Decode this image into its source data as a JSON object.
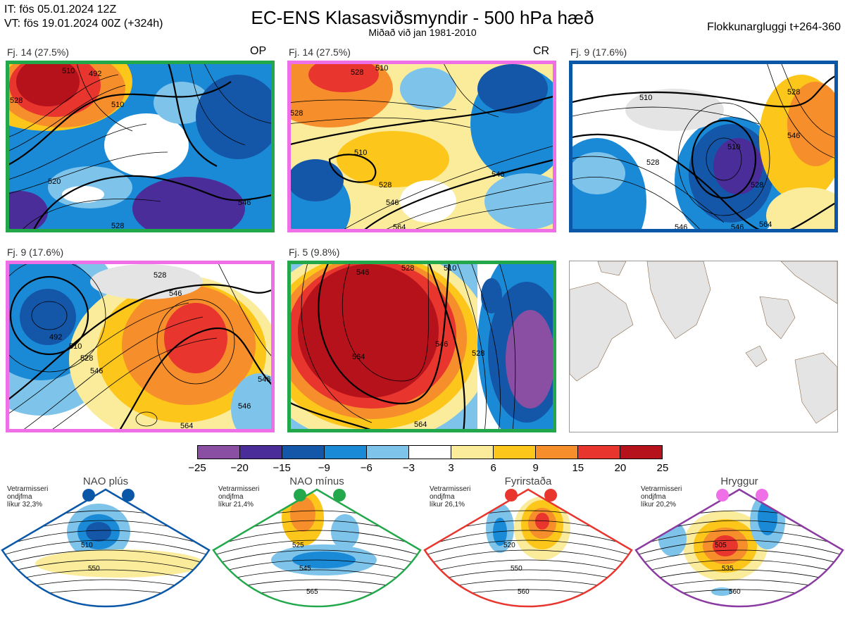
{
  "header": {
    "init_time": "IT: fös 05.01.2024 12Z",
    "valid_time": "VT: fös 19.01.2024 00Z  (+324h)",
    "title": "EC-ENS Klasasviðsmyndir - 500 hPa hæð",
    "subtitle": "Miðað við jan 1981-2010",
    "window": "Flokkunargluggi t+264-360"
  },
  "panels": [
    {
      "label": "Fj. 14 (27.5%)",
      "tag": "OP",
      "border": "#22a84a",
      "contours": [
        "510",
        "528",
        "520",
        "528",
        "546",
        "492",
        "510"
      ]
    },
    {
      "label": "Fj. 14 (27.5%)",
      "tag": "CR",
      "border": "#ee6fe6",
      "contours": [
        "528",
        "510",
        "510",
        "528",
        "546",
        "546",
        "564",
        "528"
      ]
    },
    {
      "label": "Fj. 9 (17.6%)",
      "tag": "",
      "border": "#0a57a8",
      "contours": [
        "510",
        "528",
        "528",
        "546",
        "546",
        "510",
        "528",
        "546",
        "564"
      ]
    },
    {
      "label": "Fj. 9 (17.6%)",
      "tag": "",
      "border": "#ee6fe6",
      "contours": [
        "492",
        "510",
        "528",
        "546",
        "528",
        "546",
        "546",
        "564",
        "546"
      ]
    },
    {
      "label": "Fj. 5 (9.8%)",
      "tag": "",
      "border": "#22a84a",
      "contours": [
        "546",
        "528",
        "510",
        "564",
        "546",
        "528",
        "564"
      ]
    },
    {
      "label": "",
      "tag": "",
      "border": "",
      "contours": []
    }
  ],
  "colorbar": {
    "ticks": [
      "−25",
      "−20",
      "−15",
      "−9",
      "−6",
      "−3",
      "3",
      "6",
      "9",
      "15",
      "20",
      "25"
    ],
    "colors": [
      "#8a4ea3",
      "#4b2d9a",
      "#1457a8",
      "#1b8ad6",
      "#7ec3ea",
      "#ffffff",
      "#fbec9c",
      "#fcc71a",
      "#f68e2c",
      "#e8352e",
      "#b5121b"
    ]
  },
  "regimes": [
    {
      "title": "NAO plús",
      "note": [
        "Vetrarmisseri",
        "ondjfma",
        "líkur 32,3%"
      ],
      "dot_color": "#0a57a8",
      "fan_color": "#0a57a8",
      "contours": [
        "510",
        "550"
      ]
    },
    {
      "title": "NAO mínus",
      "note": [
        "Vetrarmisseri",
        "ondjfma",
        "líkur 21,4%"
      ],
      "dot_color": "#22a84a",
      "fan_color": "#22a84a",
      "contours": [
        "525",
        "545",
        "565"
      ]
    },
    {
      "title": "Fyrirstaða",
      "note": [
        "Vetrarmisseri",
        "ondjfma",
        "líkur 26,1%"
      ],
      "dot_color": "#e8352e",
      "fan_color": "#e8352e",
      "contours": [
        "520",
        "550",
        "560"
      ]
    },
    {
      "title": "Hryggur",
      "note": [
        "Vetrarmisseri",
        "ondjfma",
        "líkur 20,2%"
      ],
      "dot_color": "#ee6fe6",
      "fan_color": "#8a3aa0",
      "contours": [
        "505",
        "535",
        "560"
      ]
    }
  ]
}
